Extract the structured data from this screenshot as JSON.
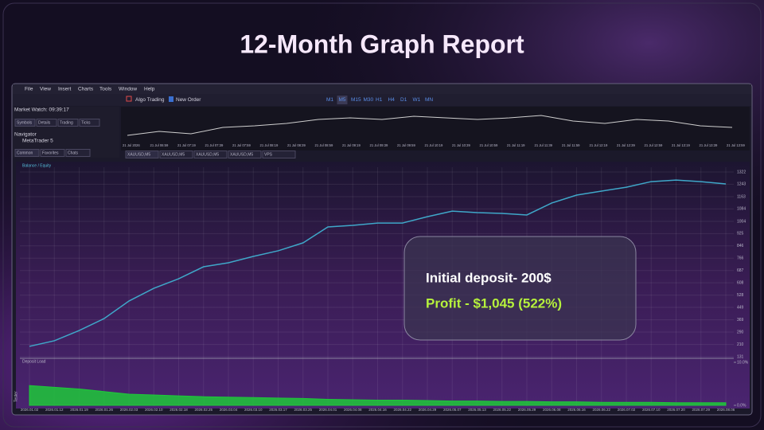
{
  "title": "12-Month Graph Report",
  "window": {
    "menu": [
      "File",
      "View",
      "Insert",
      "Charts",
      "Tools",
      "Window",
      "Help"
    ],
    "algo_trading": "Algo Trading",
    "new_order": "New Order",
    "timeframes": [
      "M1",
      "M5",
      "M15",
      "M30",
      "H1",
      "H4",
      "D1",
      "W1",
      "MN"
    ],
    "market_watch": "Market Watch: 09:39:17",
    "market_tabs": [
      "Symbols",
      "Details",
      "Trading",
      "Ticks"
    ],
    "navigator": "Navigator",
    "navigator_item": "MetaTrader 5",
    "navigator_tabs": [
      "Common",
      "Favorites",
      "Chats"
    ],
    "chart_tabs": [
      "XAUUSD,M5",
      "XAUUSD,M5",
      "XAUUSD,M5",
      "XAUUSD,M5",
      "VPS"
    ],
    "mini_times": [
      "21 Jul 2026",
      "21 Jul 06:59",
      "21 Jul 07:19",
      "21 Jul 07:39",
      "21 Jul 07:59",
      "21 Jul 08:19",
      "21 Jul 08:39",
      "21 Jul 08:59",
      "21 Jul 09:19",
      "21 Jul 09:39",
      "21 Jul 09:59",
      "21 Jul 10:19",
      "21 Jul 10:39",
      "21 Jul 10:59",
      "21 Jul 11:19",
      "21 Jul 11:39",
      "21 Jul 11:59",
      "21 Jul 12:19",
      "21 Jul 12:39",
      "21 Jul 12:59",
      "21 Jul 13:19",
      "21 Jul 13:39",
      "21 Jul 13:59"
    ],
    "side_label": "Tester"
  },
  "overlay": {
    "deposit": "Initial deposit- 200$",
    "profit": "Profit - $1,045 (522%)"
  },
  "chart_data": [
    {
      "type": "line",
      "title": "Balance / Equity",
      "categories": [
        "2026.01.02",
        "2026.01.12",
        "2026.01.19",
        "2026.01.26",
        "2026.02.03",
        "2026.02.10",
        "2026.02.18",
        "2026.02.25",
        "2026.03.04",
        "2026.03.10",
        "2026.03.17",
        "2026.03.25",
        "2026.04.01",
        "2026.04.08",
        "2026.04.16",
        "2026.04.22",
        "2026.04.29",
        "2026.05.07",
        "2026.05.13",
        "2026.05.22",
        "2026.05.29",
        "2026.06.08",
        "2026.06.16",
        "2026.06.22",
        "2026.07.02",
        "2026.07.10",
        "2026.07.20",
        "2026.07.29",
        "2026.08.06"
      ],
      "series": [
        {
          "name": "Balance",
          "color": "#3fa7c9",
          "values": [
            198,
            234,
            300,
            377,
            490,
            572,
            634,
            711,
            737,
            778,
            814,
            865,
            968,
            978,
            993,
            993,
            1034,
            1070,
            1060,
            1055,
            1045,
            1122,
            1173,
            1199,
            1224,
            1260,
            1270,
            1260,
            1245
          ]
        }
      ],
      "ylim": [
        131,
        1322
      ],
      "yticks": [
        1322,
        1243,
        1163,
        1084,
        1004,
        925,
        846,
        766,
        687,
        608,
        528,
        449,
        369,
        290,
        210,
        131
      ],
      "grid": true
    },
    {
      "type": "area",
      "title": "Deposit Load",
      "color": "#1fc83a",
      "values": [
        4.6,
        4.2,
        3.8,
        3.2,
        2.6,
        2.4,
        2.2,
        2.0,
        1.9,
        1.8,
        1.7,
        1.6,
        1.4,
        1.3,
        1.2,
        1.2,
        1.1,
        1.0,
        1.0,
        0.9,
        0.9,
        0.8,
        0.8,
        0.7,
        0.7,
        0.7,
        0.6,
        0.6,
        0.6
      ],
      "ylim": [
        0,
        10
      ],
      "yticks": [
        {
          "value": 10,
          "label": "10.0%"
        },
        {
          "value": 0,
          "label": "0.0%"
        }
      ]
    }
  ]
}
